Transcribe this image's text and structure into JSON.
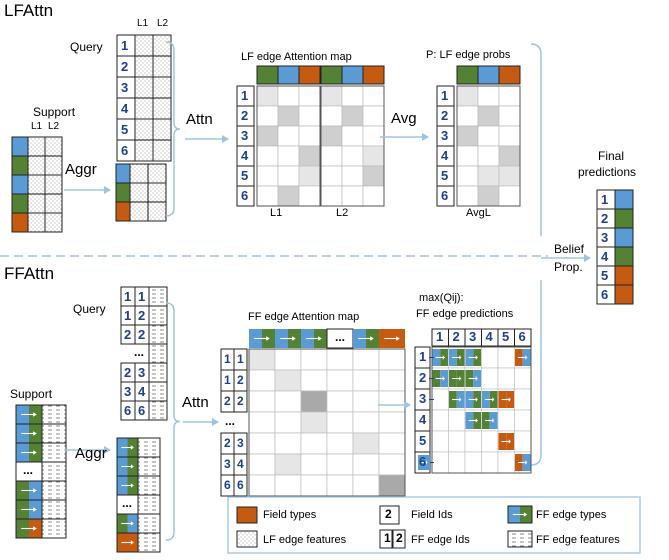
{
  "colors": {
    "green": "#548235",
    "blue": "#5b9bd5",
    "orange": "#c55a11",
    "id_text": "#1f3f8f",
    "connector": "#9dc3e6",
    "divider": "#8fb4dd",
    "attn_light": "#e6e6e6",
    "attn_mid": "#cfcfcf",
    "attn_dark": "#a9a9a9"
  },
  "top": {
    "title": "LFAttn",
    "query_label": "Query",
    "query_cols": [
      "L1",
      "L2"
    ],
    "query_ids": [
      "1",
      "2",
      "3",
      "4",
      "5",
      "6"
    ],
    "support_label": "Support",
    "support_cols": [
      "L1",
      "L2"
    ],
    "aggr_label": "Aggr",
    "attn_label": "Attn",
    "map_title": "LF edge Attention map",
    "map_ids": [
      "1",
      "2",
      "3",
      "4",
      "5",
      "6"
    ],
    "map_left_caption": "L1",
    "map_right_caption": "L2",
    "avg_label": "Avg",
    "probs_title": "P: LF edge probs",
    "probs_caption": "AvgL"
  },
  "final": {
    "title_line1": "Final",
    "title_line2": "predictions",
    "ids": [
      "1",
      "2",
      "3",
      "4",
      "5",
      "6"
    ],
    "belief_line1": "Belief",
    "belief_line2": "Prop."
  },
  "bottom": {
    "title": "FFAttn",
    "query_label": "Query",
    "query_pairs": [
      [
        "1",
        "1"
      ],
      [
        "1",
        "2"
      ],
      [
        "2",
        "2"
      ],
      [
        "...",
        ""
      ],
      [
        "2",
        "3"
      ],
      [
        "3",
        "4"
      ],
      [
        "6",
        "6"
      ]
    ],
    "support_label": "Support",
    "ellipsis": "...",
    "aggr_label": "Aggr",
    "attn_label": "Attn",
    "map_title": "FF edge Attention map",
    "map_rows": [
      [
        "1",
        "1"
      ],
      [
        "1",
        "2"
      ],
      [
        "2",
        "2"
      ],
      [
        "...",
        ""
      ],
      [
        "2",
        "3"
      ],
      [
        "3",
        "4"
      ],
      [
        "6",
        "6"
      ]
    ],
    "pred_title_line1": "max(Qij):",
    "pred_title_line2": "FF edge predictions",
    "pred_ids": [
      "1",
      "2",
      "3",
      "4",
      "5",
      "6"
    ]
  },
  "legend": {
    "field_types": "Field types",
    "field_id_example": "2",
    "field_ids": "Field Ids",
    "ff_edge_types": "FF edge types",
    "lf_edge_features": "LF edge features",
    "ff_id_example_a": "1",
    "ff_id_example_b": "2",
    "ff_edge_ids": "FF edge Ids",
    "ff_edge_features": "FF edge features"
  }
}
